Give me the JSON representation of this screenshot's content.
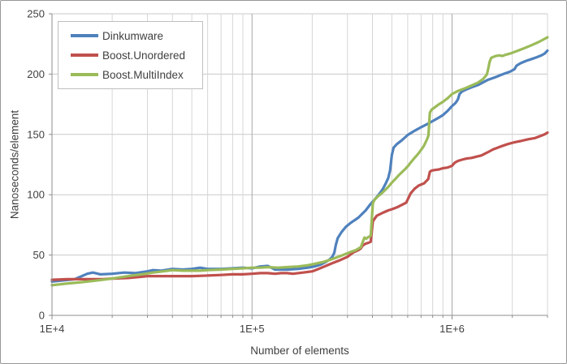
{
  "chart_data": {
    "type": "line",
    "title": "",
    "xlabel": "Number of elements",
    "ylabel": "Nanoseconds/element",
    "x_scale": "log10",
    "xlim": [
      10000,
      3000000
    ],
    "ylim": [
      0,
      250
    ],
    "grid": true,
    "legend_position": "top-left",
    "x_major_ticks": [
      10000,
      100000,
      1000000
    ],
    "x_tick_labels": [
      "1E+4",
      "1E+5",
      "1E+6"
    ],
    "y_major_ticks": [
      0,
      50,
      100,
      150,
      200,
      250
    ],
    "y_tick_labels": [
      "0",
      "50",
      "100",
      "150",
      "200",
      "250"
    ],
    "axis_color": "#8c8c8c",
    "grid_minor_color": "#d6d6d6",
    "grid_major_color": "#a8a8a8",
    "grid_horizontal_color": "#c9c9c9",
    "series": [
      {
        "name": "Dinkumware",
        "color": "#4F81BD",
        "points": [
          [
            10000,
            28
          ],
          [
            11500,
            29
          ],
          [
            13000,
            30
          ],
          [
            15000,
            34.5
          ],
          [
            16000,
            35.5
          ],
          [
            17500,
            34
          ],
          [
            20000,
            34.5
          ],
          [
            23000,
            35.5
          ],
          [
            26000,
            35
          ],
          [
            30000,
            36.5
          ],
          [
            32000,
            37.5
          ],
          [
            35000,
            37
          ],
          [
            40000,
            38.5
          ],
          [
            45000,
            38
          ],
          [
            50000,
            38.5
          ],
          [
            55000,
            39.5
          ],
          [
            60000,
            38.5
          ],
          [
            70000,
            38.5
          ],
          [
            80000,
            39
          ],
          [
            90000,
            39.5
          ],
          [
            100000,
            39
          ],
          [
            110000,
            40.5
          ],
          [
            120000,
            41
          ],
          [
            130000,
            38
          ],
          [
            150000,
            38
          ],
          [
            170000,
            38.5
          ],
          [
            190000,
            39.5
          ],
          [
            205000,
            40.5
          ],
          [
            220000,
            42
          ],
          [
            235000,
            44.5
          ],
          [
            245000,
            46.5
          ],
          [
            252000,
            48.5
          ],
          [
            258000,
            52
          ],
          [
            262000,
            58
          ],
          [
            268000,
            64
          ],
          [
            280000,
            69
          ],
          [
            295000,
            73.5
          ],
          [
            310000,
            76.5
          ],
          [
            340000,
            81
          ],
          [
            370000,
            87
          ],
          [
            390000,
            92
          ],
          [
            410000,
            96
          ],
          [
            430000,
            100
          ],
          [
            450000,
            104.5
          ],
          [
            465000,
            109
          ],
          [
            480000,
            114
          ],
          [
            490000,
            120
          ],
          [
            500000,
            133
          ],
          [
            510000,
            139
          ],
          [
            530000,
            142
          ],
          [
            560000,
            145
          ],
          [
            600000,
            149.5
          ],
          [
            650000,
            153
          ],
          [
            700000,
            156
          ],
          [
            750000,
            158.5
          ],
          [
            800000,
            161
          ],
          [
            850000,
            163.5
          ],
          [
            900000,
            166
          ],
          [
            950000,
            169.5
          ],
          [
            1000000,
            173.5
          ],
          [
            1040000,
            176
          ],
          [
            1070000,
            179
          ],
          [
            1090000,
            183.5
          ],
          [
            1120000,
            185.5
          ],
          [
            1170000,
            187
          ],
          [
            1250000,
            189
          ],
          [
            1350000,
            191
          ],
          [
            1500000,
            195
          ],
          [
            1650000,
            197.5
          ],
          [
            1800000,
            200
          ],
          [
            1950000,
            202
          ],
          [
            2050000,
            204
          ],
          [
            2100000,
            207
          ],
          [
            2200000,
            209
          ],
          [
            2350000,
            211
          ],
          [
            2500000,
            212.5
          ],
          [
            2650000,
            214
          ],
          [
            2800000,
            215.5
          ],
          [
            2900000,
            217
          ],
          [
            3000000,
            219.5
          ]
        ]
      },
      {
        "name": "Boost.Unordered",
        "color": "#C0504D",
        "points": [
          [
            10000,
            29.5
          ],
          [
            12000,
            30
          ],
          [
            15000,
            30
          ],
          [
            18000,
            30
          ],
          [
            20000,
            30.5
          ],
          [
            24000,
            31
          ],
          [
            28000,
            32
          ],
          [
            30000,
            32.5
          ],
          [
            35000,
            32.5
          ],
          [
            40000,
            32.5
          ],
          [
            45000,
            32.5
          ],
          [
            50000,
            32.5
          ],
          [
            60000,
            33
          ],
          [
            70000,
            33.5
          ],
          [
            80000,
            34
          ],
          [
            90000,
            34
          ],
          [
            100000,
            34.5
          ],
          [
            110000,
            35
          ],
          [
            120000,
            35
          ],
          [
            130000,
            34.5
          ],
          [
            140000,
            35
          ],
          [
            150000,
            35
          ],
          [
            160000,
            34.5
          ],
          [
            180000,
            35.5
          ],
          [
            200000,
            36.5
          ],
          [
            215000,
            38.5
          ],
          [
            226000,
            40
          ],
          [
            250000,
            43
          ],
          [
            273000,
            45.5
          ],
          [
            300000,
            48.5
          ],
          [
            320000,
            52
          ],
          [
            340000,
            54
          ],
          [
            350000,
            55.5
          ],
          [
            358000,
            58
          ],
          [
            370000,
            59.5
          ],
          [
            380000,
            60
          ],
          [
            392000,
            61
          ],
          [
            402000,
            78
          ],
          [
            420000,
            82.5
          ],
          [
            450000,
            85
          ],
          [
            480000,
            87
          ],
          [
            500000,
            88
          ],
          [
            530000,
            89.5
          ],
          [
            560000,
            91.5
          ],
          [
            590000,
            93.5
          ],
          [
            620000,
            101
          ],
          [
            650000,
            105
          ],
          [
            680000,
            107.5
          ],
          [
            700000,
            108.5
          ],
          [
            725000,
            109.5
          ],
          [
            745000,
            111.5
          ],
          [
            760000,
            113
          ],
          [
            775000,
            119
          ],
          [
            790000,
            120
          ],
          [
            820000,
            120.5
          ],
          [
            860000,
            121
          ],
          [
            900000,
            122
          ],
          [
            950000,
            122.5
          ],
          [
            1000000,
            124
          ],
          [
            1030000,
            126.5
          ],
          [
            1070000,
            128
          ],
          [
            1120000,
            129
          ],
          [
            1180000,
            130
          ],
          [
            1250000,
            130.5
          ],
          [
            1320000,
            131.5
          ],
          [
            1400000,
            132.5
          ],
          [
            1500000,
            135
          ],
          [
            1600000,
            137.5
          ],
          [
            1750000,
            140
          ],
          [
            1900000,
            142
          ],
          [
            2050000,
            143.5
          ],
          [
            2200000,
            144.5
          ],
          [
            2400000,
            146
          ],
          [
            2600000,
            147
          ],
          [
            2800000,
            149
          ],
          [
            2900000,
            150
          ],
          [
            3000000,
            151.5
          ]
        ]
      },
      {
        "name": "Boost.MultiIndex",
        "color": "#9BBB59",
        "points": [
          [
            10000,
            25
          ],
          [
            12000,
            26.5
          ],
          [
            14000,
            27.5
          ],
          [
            17000,
            29
          ],
          [
            20000,
            30.5
          ],
          [
            24000,
            32.5
          ],
          [
            28000,
            34
          ],
          [
            32000,
            35.5
          ],
          [
            36000,
            36.5
          ],
          [
            40000,
            37.5
          ],
          [
            45000,
            37
          ],
          [
            50000,
            37
          ],
          [
            55000,
            37
          ],
          [
            60000,
            37.5
          ],
          [
            70000,
            38
          ],
          [
            80000,
            38.5
          ],
          [
            90000,
            39
          ],
          [
            100000,
            39.5
          ],
          [
            110000,
            39.5
          ],
          [
            120000,
            40
          ],
          [
            135000,
            39.5
          ],
          [
            150000,
            40
          ],
          [
            170000,
            40.5
          ],
          [
            190000,
            41.5
          ],
          [
            210000,
            43
          ],
          [
            230000,
            44.5
          ],
          [
            250000,
            46.5
          ],
          [
            270000,
            48.5
          ],
          [
            290000,
            50.5
          ],
          [
            310000,
            52.5
          ],
          [
            330000,
            54
          ],
          [
            350000,
            56.5
          ],
          [
            360000,
            62
          ],
          [
            365000,
            64.5
          ],
          [
            372000,
            63.5
          ],
          [
            382000,
            65
          ],
          [
            392000,
            66
          ],
          [
            402000,
            93
          ],
          [
            410000,
            96
          ],
          [
            425000,
            98.5
          ],
          [
            440000,
            100.5
          ],
          [
            460000,
            103.5
          ],
          [
            480000,
            106.5
          ],
          [
            500000,
            110
          ],
          [
            520000,
            113
          ],
          [
            540000,
            116
          ],
          [
            560000,
            118.5
          ],
          [
            580000,
            121
          ],
          [
            600000,
            123.5
          ],
          [
            620000,
            126.5
          ],
          [
            645000,
            130
          ],
          [
            670000,
            133
          ],
          [
            695000,
            136.5
          ],
          [
            720000,
            140
          ],
          [
            735000,
            143
          ],
          [
            750000,
            146
          ],
          [
            762000,
            149
          ],
          [
            775000,
            168
          ],
          [
            790000,
            170.5
          ],
          [
            820000,
            172.5
          ],
          [
            860000,
            175
          ],
          [
            900000,
            177
          ],
          [
            950000,
            180
          ],
          [
            1000000,
            183.5
          ],
          [
            1070000,
            186
          ],
          [
            1150000,
            188
          ],
          [
            1250000,
            190.5
          ],
          [
            1350000,
            193
          ],
          [
            1430000,
            196
          ],
          [
            1490000,
            199.5
          ],
          [
            1510000,
            203
          ],
          [
            1540000,
            210
          ],
          [
            1570000,
            213.5
          ],
          [
            1650000,
            215
          ],
          [
            1730000,
            215.5
          ],
          [
            1780000,
            215
          ],
          [
            1850000,
            216
          ],
          [
            1950000,
            217
          ],
          [
            2100000,
            219
          ],
          [
            2300000,
            221.5
          ],
          [
            2500000,
            224
          ],
          [
            2700000,
            226.5
          ],
          [
            2850000,
            228.5
          ],
          [
            3000000,
            230.5
          ]
        ]
      }
    ]
  }
}
